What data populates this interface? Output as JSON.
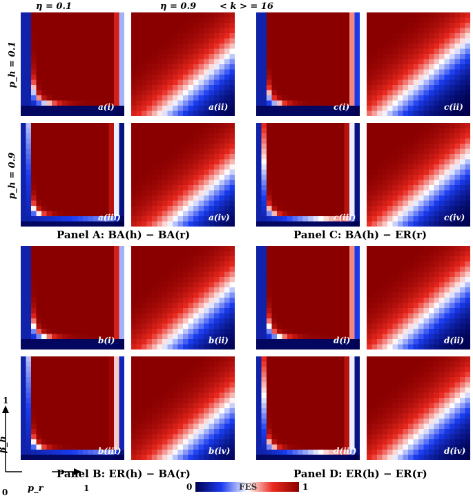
{
  "header": {
    "col_labels": [
      "η = 0.1",
      "η = 0.9"
    ],
    "degree_label": "< k > = 16"
  },
  "row_labels": [
    "p_h = 0.1",
    "p_h = 0.9"
  ],
  "panel_titles": {
    "A": "Panel A: BA(h) − BA(r)",
    "B": "Panel B: ER(h) − BA(r)",
    "C": "Panel C: BA(h) − ER(r)",
    "D": "Panel D: ER(h) − ER(r)"
  },
  "axes": {
    "x_label": "p_r",
    "y_label": "β_h",
    "x_end": "1",
    "y_end": "1",
    "origin": "0"
  },
  "colorbar": {
    "min": "0",
    "label": "FES",
    "max": "1"
  },
  "chart_data": {
    "type": "heatmap",
    "colormap": [
      "#00004d",
      "#1a3cf0",
      "#ffffff",
      "#e8281e",
      "#8a0000"
    ],
    "x_label": "p_r",
    "y_label": "β_h",
    "xlim": [
      0,
      1
    ],
    "ylim": [
      0,
      1
    ],
    "value_range": [
      0,
      1
    ],
    "grid_size": 20,
    "panels": [
      {
        "id": "a(i)",
        "panel": "A",
        "eta": 0.1,
        "p_h": 0.1,
        "kind": "corner",
        "thr": 0.09,
        "edge": 0.9
      },
      {
        "id": "a(ii)",
        "panel": "A",
        "eta": 0.9,
        "p_h": 0.1,
        "kind": "diag",
        "thr": 0.55
      },
      {
        "id": "a(iii)",
        "panel": "A",
        "eta": 0.1,
        "p_h": 0.9,
        "kind": "corner",
        "thr": 0.07,
        "edge": 0.86
      },
      {
        "id": "a(iv)",
        "panel": "A",
        "eta": 0.9,
        "p_h": 0.9,
        "kind": "diag",
        "thr": 0.5
      },
      {
        "id": "b(i)",
        "panel": "B",
        "eta": 0.1,
        "p_h": 0.1,
        "kind": "corner",
        "thr": 0.085,
        "edge": 0.9
      },
      {
        "id": "b(ii)",
        "panel": "B",
        "eta": 0.9,
        "p_h": 0.1,
        "kind": "diag",
        "thr": 0.55
      },
      {
        "id": "b(iii)",
        "panel": "B",
        "eta": 0.1,
        "p_h": 0.9,
        "kind": "corner",
        "thr": 0.07,
        "edge": 0.87
      },
      {
        "id": "b(iv)",
        "panel": "B",
        "eta": 0.9,
        "p_h": 0.9,
        "kind": "diag",
        "thr": 0.5
      },
      {
        "id": "c(i)",
        "panel": "C",
        "eta": 0.1,
        "p_h": 0.1,
        "kind": "corner",
        "thr": 0.08,
        "edge": 0.88
      },
      {
        "id": "c(ii)",
        "panel": "C",
        "eta": 0.9,
        "p_h": 0.1,
        "kind": "diag",
        "thr": 0.65
      },
      {
        "id": "c(iii)",
        "panel": "C",
        "eta": 0.1,
        "p_h": 0.9,
        "kind": "corner",
        "thr": 0.065,
        "edge": 0.86
      },
      {
        "id": "c(iv)",
        "panel": "C",
        "eta": 0.9,
        "p_h": 0.9,
        "kind": "diag",
        "thr": 0.6
      },
      {
        "id": "d(i)",
        "panel": "D",
        "eta": 0.1,
        "p_h": 0.1,
        "kind": "corner",
        "thr": 0.085,
        "edge": 0.88
      },
      {
        "id": "d(ii)",
        "panel": "D",
        "eta": 0.9,
        "p_h": 0.1,
        "kind": "diag",
        "thr": 0.6
      },
      {
        "id": "d(iii)",
        "panel": "D",
        "eta": 0.1,
        "p_h": 0.9,
        "kind": "corner",
        "thr": 0.065,
        "edge": 0.86
      },
      {
        "id": "d(iv)",
        "panel": "D",
        "eta": 0.9,
        "p_h": 0.9,
        "kind": "diag",
        "thr": 0.58
      }
    ]
  }
}
